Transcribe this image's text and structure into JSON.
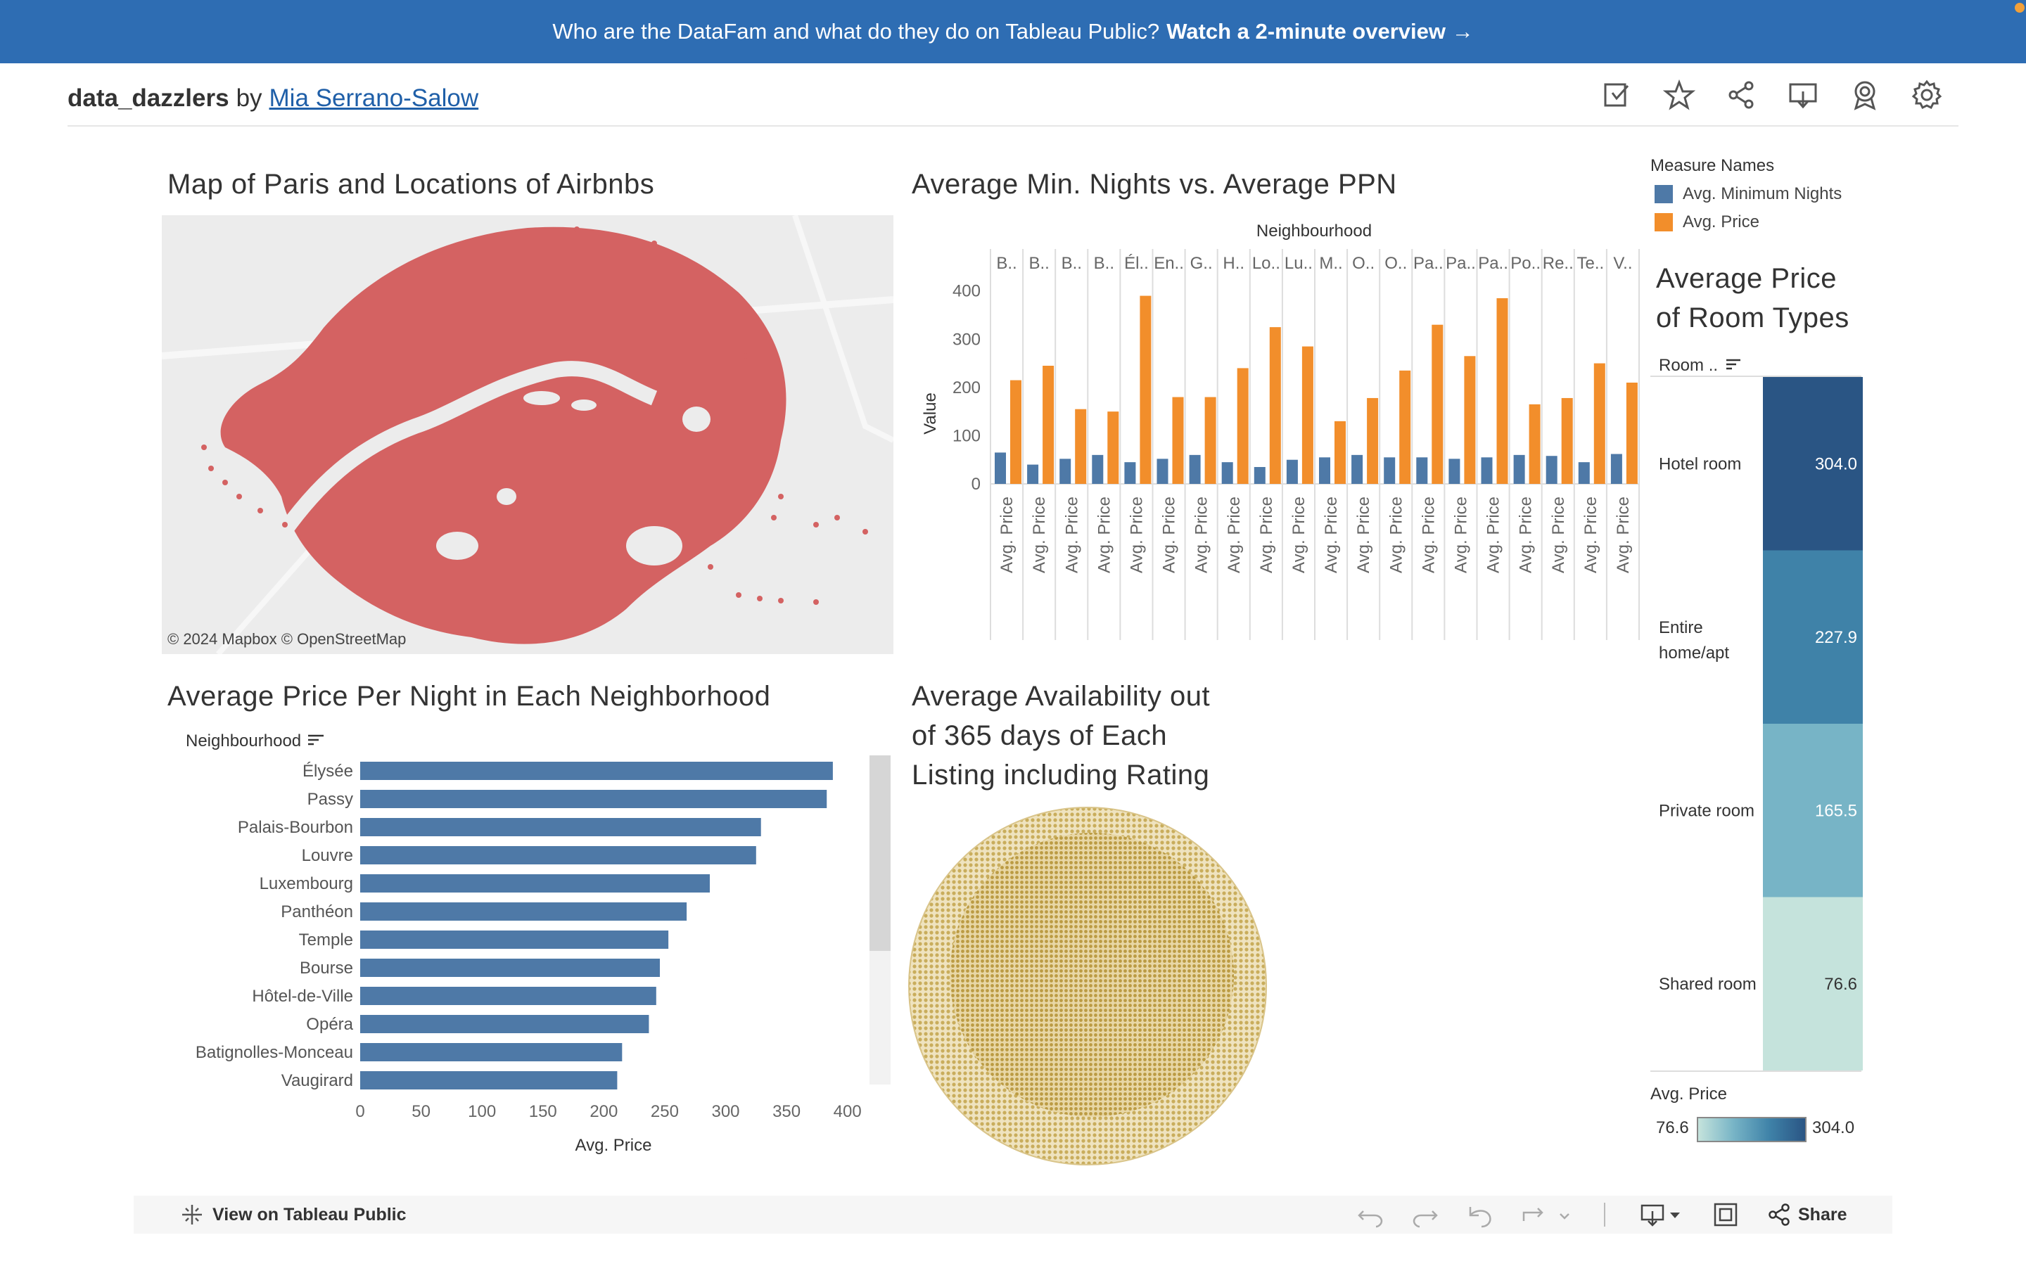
{
  "banner": {
    "text": "Who are the DataFam and what do they do on Tableau Public?",
    "link": "Watch a 2-minute overview →"
  },
  "header": {
    "workbook": "data_dazzlers",
    "by": "by",
    "author": "Mia Serrano-Salow"
  },
  "toolbar_icons": [
    "edit-icon",
    "star-icon",
    "share-icon",
    "download-icon",
    "badge-icon",
    "gear-icon"
  ],
  "map": {
    "title": "Map of Paris and Locations of Airbnbs",
    "attribution": "© 2024 Mapbox  © OpenStreetMap",
    "point_color": "#d46262"
  },
  "legend": {
    "title": "Measure Names",
    "items": [
      {
        "label": "Avg. Minimum Nights",
        "color": "#4e79a7"
      },
      {
        "label": "Avg. Price",
        "color": "#f28e2b"
      }
    ]
  },
  "room_panel": {
    "title_line1": "Average Price",
    "title_line2": "of Room Types",
    "header": "Room ..",
    "scale_title": "Avg. Price",
    "scale_min": "76.6",
    "scale_max": "304.0"
  },
  "availability": {
    "title_line1": "Average Availability out",
    "title_line2": "of 365 days of Each",
    "title_line3": "Listing including Rating",
    "color": "#c9ad5c"
  },
  "footer": {
    "view": "View on Tableau Public",
    "share": "Share"
  },
  "chart_data": [
    {
      "type": "bar",
      "title": "Average Min. Nights vs. Average PPN",
      "column_header": "Neighbourhood",
      "ylabel": "Value",
      "ylim": [
        0,
        420
      ],
      "yticks": [
        0,
        100,
        200,
        300,
        400
      ],
      "categories": [
        "B..",
        "B..",
        "B..",
        "B..",
        "Él..",
        "En..",
        "G..",
        "H..",
        "Lo..",
        "Lu..",
        "M..",
        "O..",
        "O..",
        "Pa..",
        "Pa..",
        "Pa..",
        "Po..",
        "Re..",
        "Te..",
        "V.."
      ],
      "bar_label": "Avg. Price",
      "series": [
        {
          "name": "Avg. Minimum Nights",
          "values": [
            65,
            40,
            52,
            60,
            45,
            52,
            60,
            45,
            35,
            50,
            55,
            60,
            55,
            55,
            52,
            55,
            60,
            58,
            45,
            62
          ]
        },
        {
          "name": "Avg. Price",
          "values": [
            215,
            245,
            155,
            150,
            390,
            180,
            180,
            240,
            325,
            285,
            130,
            178,
            235,
            330,
            265,
            385,
            165,
            178,
            250,
            210
          ]
        }
      ]
    },
    {
      "type": "bar",
      "title": "Average Price Per Night in Each Neighborhood",
      "ylabel": "Neighbourhood",
      "xlabel": "Avg. Price",
      "xlim": [
        0,
        410
      ],
      "xticks": [
        0,
        50,
        100,
        150,
        200,
        250,
        300,
        350,
        400
      ],
      "categories": [
        "Élysée",
        "Passy",
        "Palais-Bourbon",
        "Louvre",
        "Luxembourg",
        "Panthéon",
        "Temple",
        "Bourse",
        "Hôtel-de-Ville",
        "Opéra",
        "Batignolles-Monceau",
        "Vaugirard"
      ],
      "values": [
        388,
        383,
        329,
        325,
        287,
        268,
        253,
        246,
        243,
        237,
        215,
        211
      ],
      "color": "#4e79a7"
    },
    {
      "type": "table",
      "title": "Average Price of Room Types",
      "categories": [
        "Hotel room",
        "Entire home/apt",
        "Private room",
        "Shared room"
      ],
      "values": [
        304.0,
        227.9,
        165.5,
        76.6
      ],
      "colors": [
        "#2a5584",
        "#3f82a8",
        "#77b4c6",
        "#c5e3dc"
      ]
    }
  ]
}
